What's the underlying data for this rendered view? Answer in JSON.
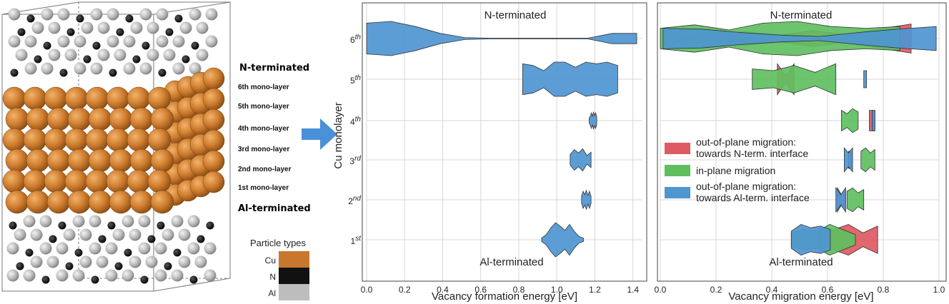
{
  "structure_panel": {
    "term_top": "N-terminated",
    "term_bottom": "Al-terminated",
    "layer_labels": [
      "6th mono-layer",
      "5th mono-layer",
      "4th mono-layer",
      "3rd mono-layer",
      "2nd mono-layer",
      "1st mono-layer"
    ],
    "legend_title": "Particle types",
    "particle_types": [
      {
        "label": "Cu",
        "color": "#c8782c"
      },
      {
        "label": "N",
        "color": "#111111"
      },
      {
        "label": "Al",
        "color": "#bdbdbd"
      }
    ]
  },
  "arrow": {
    "color": "#4a90d9",
    "icon": "right-arrow-icon"
  },
  "chart_data": [
    {
      "type": "violin",
      "title": "",
      "xlabel": "Vacancy formation energy [eV]",
      "ylabel": "Cu monolayer",
      "xlim": [
        0.0,
        1.45
      ],
      "xticks": [
        "0.0",
        "0.2",
        "0.4",
        "0.6",
        "0.8",
        "1.0",
        "1.2",
        "1.4"
      ],
      "categories": [
        "1st",
        "2nd",
        "3rd",
        "4th",
        "5th",
        "6th"
      ],
      "annotations": {
        "top": "N-terminated",
        "bottom": "Al-terminated"
      },
      "series": [
        {
          "name": "vacancy formation",
          "color": "#4e95d1",
          "violins": [
            {
              "layer": "6th",
              "range": [
                0.0,
                1.42
              ],
              "widths": [
                0.9,
                1.0,
                0.7,
                0.3,
                0.06,
                0.02,
                0.02,
                0.02,
                0.02,
                0.02,
                0.3,
                0.3
              ]
            },
            {
              "layer": "5th",
              "range": [
                0.82,
                1.32
              ],
              "widths": [
                0.9,
                0.8,
                0.5,
                1.0,
                1.0,
                0.7,
                1.0,
                0.9,
                1.0,
                0.8
              ]
            },
            {
              "layer": "4th",
              "range": [
                1.17,
                1.21
              ],
              "widths": [
                0.15,
                0.25,
                0.45,
                0.25,
                0.5,
                0.3,
                0.45,
                0.2
              ]
            },
            {
              "layer": "3rd",
              "range": [
                1.07,
                1.18
              ],
              "widths": [
                0.3,
                0.6,
                0.4,
                0.65,
                0.25,
                0.45
              ]
            },
            {
              "layer": "2nd",
              "range": [
                1.13,
                1.18
              ],
              "widths": [
                0.2,
                0.5,
                0.3,
                0.55,
                0.25,
                0.5,
                0.2
              ]
            },
            {
              "layer": "1st",
              "range": [
                0.92,
                1.14
              ],
              "widths": [
                0.1,
                0.3,
                0.7,
                1.0,
                0.8,
                0.55,
                0.9,
                0.5,
                0.2,
                0.1
              ]
            }
          ]
        }
      ]
    },
    {
      "type": "violin",
      "title": "",
      "xlabel": "Vacancy migration energy [eV]",
      "ylabel": "",
      "xlim": [
        0.0,
        1.0
      ],
      "xticks": [
        "0.0",
        "0.2",
        "0.4",
        "0.6",
        "0.8",
        "1.0"
      ],
      "categories": [
        "1st",
        "2nd",
        "3rd",
        "4th",
        "5th",
        "6th"
      ],
      "annotations": {
        "top": "N-terminated",
        "bottom": "Al-terminated"
      },
      "legend": [
        {
          "label": "out-of-plane migration: towards N-term. interface",
          "color": "#e05a62"
        },
        {
          "label": "in-plane migration",
          "color": "#5fbf5f"
        },
        {
          "label": "out-of-plane migration: towards Al-term. interface",
          "color": "#4e95d1"
        }
      ],
      "series": [
        {
          "name": "out-of-plane migration: towards N-term. interface",
          "color": "#e05a62",
          "violins": [
            {
              "layer": "6th",
              "range": [
                0.07,
                0.9
              ],
              "widths": [
                0.2,
                0.35,
                0.4,
                0.2,
                0.45,
                0.25,
                0.55,
                0.85
              ]
            },
            {
              "layer": "5th",
              "range": [
                0.42,
                0.48
              ],
              "widths": [
                0.9,
                0.2,
                0.9
              ]
            },
            {
              "layer": "4th",
              "range": [
                0.75,
                0.77
              ],
              "widths": [
                0.6,
                0.6
              ]
            },
            {
              "layer": "3rd",
              "range": [
                0.675,
                0.685
              ],
              "widths": [
                0.5,
                0.5
              ]
            },
            {
              "layer": "2nd",
              "range": [
                0.635,
                0.665
              ],
              "widths": [
                0.7,
                0.3,
                0.7
              ]
            },
            {
              "layer": "1st",
              "range": [
                0.57,
                0.78
              ],
              "widths": [
                0.5,
                0.6,
                0.9,
                0.4,
                0.8
              ]
            }
          ]
        },
        {
          "name": "in-plane migration",
          "color": "#5fbf5f",
          "violins": [
            {
              "layer": "6th",
              "range": [
                0.0,
                0.86
              ],
              "widths": [
                0.6,
                0.8,
                0.5,
                0.9,
                1.0,
                0.7,
                0.6,
                0.7
              ]
            },
            {
              "layer": "5th",
              "range": [
                0.33,
                0.63
              ],
              "widths": [
                0.6,
                0.5,
                0.8,
                0.4,
                0.9
              ]
            },
            {
              "layer": "4th",
              "range": [
                0.65,
                0.71
              ],
              "widths": [
                0.6,
                0.4,
                0.7,
                0.5
              ]
            },
            {
              "layer": "3rd",
              "range": [
                0.72,
                0.77
              ],
              "widths": [
                0.5,
                0.7,
                0.4,
                0.6
              ]
            },
            {
              "layer": "2nd",
              "range": [
                0.67,
                0.73
              ],
              "widths": [
                0.5,
                0.7,
                0.4,
                0.6
              ]
            },
            {
              "layer": "1st",
              "range": [
                0.47,
                0.7
              ],
              "widths": [
                0.4,
                0.6,
                0.5,
                0.9,
                0.6,
                0.3
              ]
            }
          ]
        },
        {
          "name": "out-of-plane migration: towards Al-term. interface",
          "color": "#4e95d1",
          "violins": [
            {
              "layer": "6th",
              "range": [
                0.01,
                0.99
              ],
              "widths": [
                0.6,
                0.55,
                0.35,
                0.2,
                0.12,
                0.35,
                0.55,
                0.7
              ]
            },
            {
              "layer": "5th",
              "range": [
                0.73,
                0.74
              ],
              "widths": [
                0.5,
                0.5
              ]
            },
            {
              "layer": "4th",
              "range": [
                0.76,
                0.77
              ],
              "widths": [
                0.6,
                0.6
              ]
            },
            {
              "layer": "3rd",
              "range": [
                0.66,
                0.69
              ],
              "widths": [
                0.7,
                0.4,
                0.7
              ]
            },
            {
              "layer": "2nd",
              "range": [
                0.63,
                0.665
              ],
              "widths": [
                0.7,
                0.3,
                0.7
              ]
            },
            {
              "layer": "1st",
              "range": [
                0.47,
                0.61
              ],
              "widths": [
                0.5,
                0.9,
                0.7,
                0.8,
                0.6
              ]
            }
          ]
        }
      ]
    }
  ]
}
